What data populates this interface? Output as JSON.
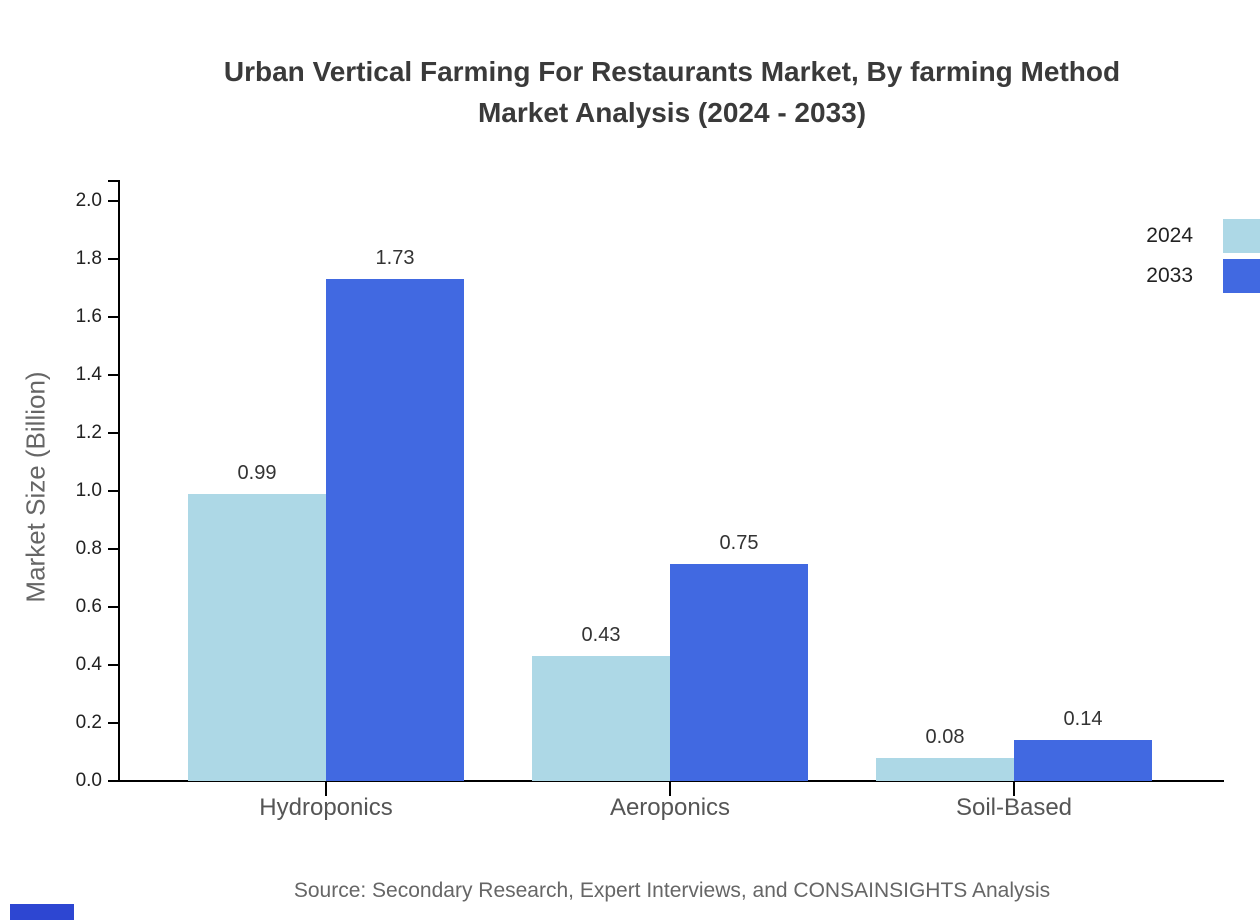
{
  "chart_data": {
    "type": "bar",
    "title": "Urban Vertical Farming For Restaurants Market, By farming Method Market Analysis (2024 - 2033)",
    "title_lines": [
      "Urban Vertical Farming For Restaurants Market, By farming Method",
      "Market Analysis (2024 - 2033)"
    ],
    "ylabel": "Market Size (Billion)",
    "xlabel": "",
    "categories": [
      "Hydroponics",
      "Aeroponics",
      "Soil-Based"
    ],
    "series": [
      {
        "name": "2024",
        "color": "#ADD8E6",
        "values": [
          0.99,
          0.43,
          0.08
        ]
      },
      {
        "name": "2033",
        "color": "#4169E1",
        "values": [
          1.73,
          0.75,
          0.14
        ]
      }
    ],
    "value_labels": [
      [
        "0.99",
        "0.43",
        "0.08"
      ],
      [
        "1.73",
        "0.75",
        "0.14"
      ]
    ],
    "ylim": [
      0.0,
      2.0
    ],
    "ytick_step": 0.2,
    "ytick_labels": [
      "0.0",
      "0.2",
      "0.4",
      "0.6",
      "0.8",
      "1.0",
      "1.2",
      "1.4",
      "1.6",
      "1.8",
      "2.0"
    ],
    "grid": false,
    "legend_position": "top-right"
  },
  "footer": {
    "source_text": "Source: Secondary Research, Expert Interviews, and CONSAINSIGHTS Analysis"
  },
  "colors": {
    "background": "#ffffff",
    "title": "#3a3a3a",
    "axis_line": "#000000",
    "ytick_label": "#222222",
    "category_label": "#555555",
    "ylabel": "#666666",
    "value_label": "#333333",
    "source": "#666666",
    "watermark": "#2d46d2"
  }
}
